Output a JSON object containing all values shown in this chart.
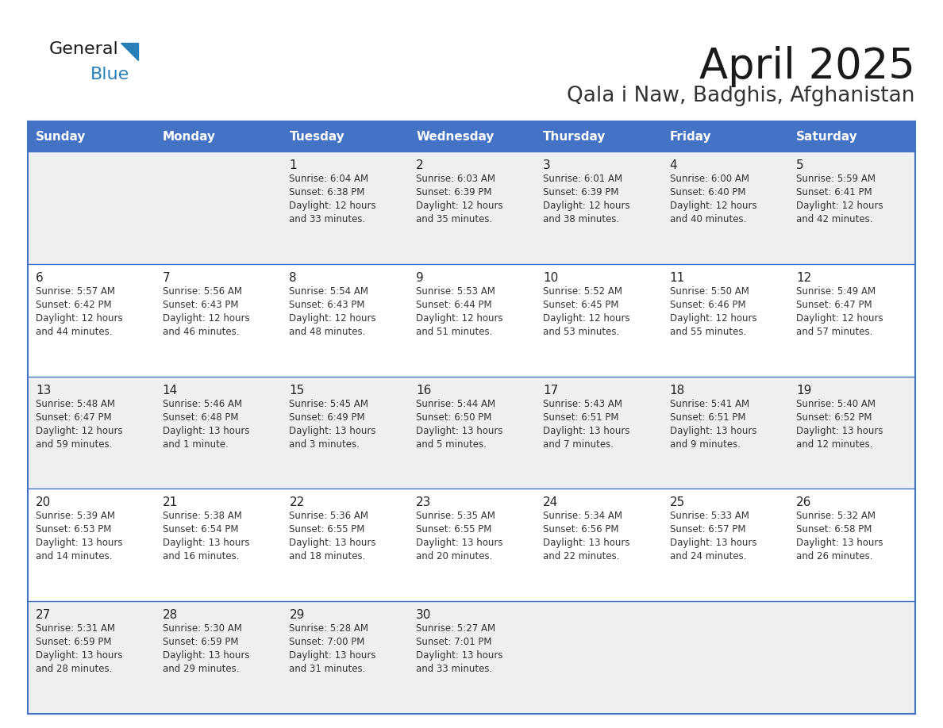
{
  "title": "April 2025",
  "subtitle": "Qala i Naw, Badghis, Afghanistan",
  "days_of_week": [
    "Sunday",
    "Monday",
    "Tuesday",
    "Wednesday",
    "Thursday",
    "Friday",
    "Saturday"
  ],
  "header_bg_color": "#4472C4",
  "header_text_color": "#FFFFFF",
  "odd_row_bg": "#EFEFEF",
  "even_row_bg": "#FFFFFF",
  "border_color": "#4472C4",
  "title_color": "#1a1a1a",
  "subtitle_color": "#333333",
  "day_num_color": "#222222",
  "cell_text_color": "#333333",
  "logo_black": "#1a1a1a",
  "logo_blue": "#2980B9",
  "logo_triangle": "#2980B9",
  "weeks": [
    [
      {
        "day": null,
        "info": null
      },
      {
        "day": null,
        "info": null
      },
      {
        "day": 1,
        "info": "Sunrise: 6:04 AM\nSunset: 6:38 PM\nDaylight: 12 hours\nand 33 minutes."
      },
      {
        "day": 2,
        "info": "Sunrise: 6:03 AM\nSunset: 6:39 PM\nDaylight: 12 hours\nand 35 minutes."
      },
      {
        "day": 3,
        "info": "Sunrise: 6:01 AM\nSunset: 6:39 PM\nDaylight: 12 hours\nand 38 minutes."
      },
      {
        "day": 4,
        "info": "Sunrise: 6:00 AM\nSunset: 6:40 PM\nDaylight: 12 hours\nand 40 minutes."
      },
      {
        "day": 5,
        "info": "Sunrise: 5:59 AM\nSunset: 6:41 PM\nDaylight: 12 hours\nand 42 minutes."
      }
    ],
    [
      {
        "day": 6,
        "info": "Sunrise: 5:57 AM\nSunset: 6:42 PM\nDaylight: 12 hours\nand 44 minutes."
      },
      {
        "day": 7,
        "info": "Sunrise: 5:56 AM\nSunset: 6:43 PM\nDaylight: 12 hours\nand 46 minutes."
      },
      {
        "day": 8,
        "info": "Sunrise: 5:54 AM\nSunset: 6:43 PM\nDaylight: 12 hours\nand 48 minutes."
      },
      {
        "day": 9,
        "info": "Sunrise: 5:53 AM\nSunset: 6:44 PM\nDaylight: 12 hours\nand 51 minutes."
      },
      {
        "day": 10,
        "info": "Sunrise: 5:52 AM\nSunset: 6:45 PM\nDaylight: 12 hours\nand 53 minutes."
      },
      {
        "day": 11,
        "info": "Sunrise: 5:50 AM\nSunset: 6:46 PM\nDaylight: 12 hours\nand 55 minutes."
      },
      {
        "day": 12,
        "info": "Sunrise: 5:49 AM\nSunset: 6:47 PM\nDaylight: 12 hours\nand 57 minutes."
      }
    ],
    [
      {
        "day": 13,
        "info": "Sunrise: 5:48 AM\nSunset: 6:47 PM\nDaylight: 12 hours\nand 59 minutes."
      },
      {
        "day": 14,
        "info": "Sunrise: 5:46 AM\nSunset: 6:48 PM\nDaylight: 13 hours\nand 1 minute."
      },
      {
        "day": 15,
        "info": "Sunrise: 5:45 AM\nSunset: 6:49 PM\nDaylight: 13 hours\nand 3 minutes."
      },
      {
        "day": 16,
        "info": "Sunrise: 5:44 AM\nSunset: 6:50 PM\nDaylight: 13 hours\nand 5 minutes."
      },
      {
        "day": 17,
        "info": "Sunrise: 5:43 AM\nSunset: 6:51 PM\nDaylight: 13 hours\nand 7 minutes."
      },
      {
        "day": 18,
        "info": "Sunrise: 5:41 AM\nSunset: 6:51 PM\nDaylight: 13 hours\nand 9 minutes."
      },
      {
        "day": 19,
        "info": "Sunrise: 5:40 AM\nSunset: 6:52 PM\nDaylight: 13 hours\nand 12 minutes."
      }
    ],
    [
      {
        "day": 20,
        "info": "Sunrise: 5:39 AM\nSunset: 6:53 PM\nDaylight: 13 hours\nand 14 minutes."
      },
      {
        "day": 21,
        "info": "Sunrise: 5:38 AM\nSunset: 6:54 PM\nDaylight: 13 hours\nand 16 minutes."
      },
      {
        "day": 22,
        "info": "Sunrise: 5:36 AM\nSunset: 6:55 PM\nDaylight: 13 hours\nand 18 minutes."
      },
      {
        "day": 23,
        "info": "Sunrise: 5:35 AM\nSunset: 6:55 PM\nDaylight: 13 hours\nand 20 minutes."
      },
      {
        "day": 24,
        "info": "Sunrise: 5:34 AM\nSunset: 6:56 PM\nDaylight: 13 hours\nand 22 minutes."
      },
      {
        "day": 25,
        "info": "Sunrise: 5:33 AM\nSunset: 6:57 PM\nDaylight: 13 hours\nand 24 minutes."
      },
      {
        "day": 26,
        "info": "Sunrise: 5:32 AM\nSunset: 6:58 PM\nDaylight: 13 hours\nand 26 minutes."
      }
    ],
    [
      {
        "day": 27,
        "info": "Sunrise: 5:31 AM\nSunset: 6:59 PM\nDaylight: 13 hours\nand 28 minutes."
      },
      {
        "day": 28,
        "info": "Sunrise: 5:30 AM\nSunset: 6:59 PM\nDaylight: 13 hours\nand 29 minutes."
      },
      {
        "day": 29,
        "info": "Sunrise: 5:28 AM\nSunset: 7:00 PM\nDaylight: 13 hours\nand 31 minutes."
      },
      {
        "day": 30,
        "info": "Sunrise: 5:27 AM\nSunset: 7:01 PM\nDaylight: 13 hours\nand 33 minutes."
      },
      {
        "day": null,
        "info": null
      },
      {
        "day": null,
        "info": null
      },
      {
        "day": null,
        "info": null
      }
    ]
  ]
}
